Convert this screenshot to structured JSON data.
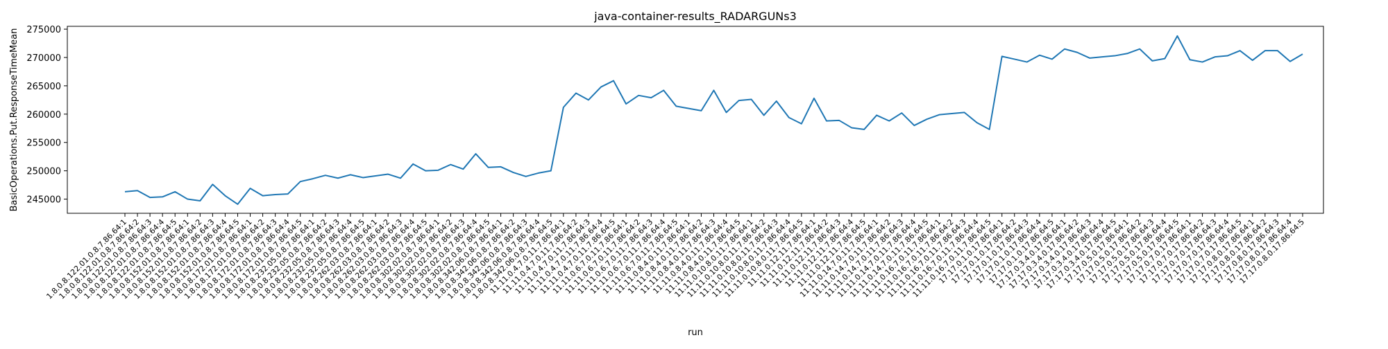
{
  "chart_data": {
    "type": "line",
    "title": "java-container-results_RADARGUNs3",
    "xlabel": "run",
    "ylabel": "BasicOperations.Put.ResponseTimeMean",
    "ylim": [
      242500,
      275500
    ],
    "yticks": [
      245000,
      250000,
      255000,
      260000,
      265000,
      270000,
      275000
    ],
    "grid": false,
    "line_color": "#1f77b4",
    "categories": [
      "1.8.0.8.122.01.0.8.7.86.64:1",
      "1.8.0.8.122.01.0.8.7.86.64:2",
      "1.8.0.8.122.01.0.8.7.86.64:3",
      "1.8.0.8.122.01.0.8.7.86.64:4",
      "1.8.0.8.122.01.0.8.7.86.64:5",
      "1.8.0.8.152.01.0.8.7.86.64:1",
      "1.8.0.8.152.01.0.8.7.86.64:2",
      "1.8.0.8.152.01.0.8.7.86.64:3",
      "1.8.0.8.152.01.0.8.7.86.64:4",
      "1.8.0.8.152.01.0.8.7.86.64:5",
      "1.8.0.8.172.01.0.8.7.86.64:1",
      "1.8.0.8.172.01.0.8.7.86.64:2",
      "1.8.0.8.172.01.0.8.7.86.64:3",
      "1.8.0.8.172.01.0.8.7.86.64:4",
      "1.8.0.8.172.01.0.8.7.86.64:5",
      "1.8.0.8.232.05.0.8.7.86.64:1",
      "1.8.0.8.232.05.0.8.7.86.64:2",
      "1.8.0.8.232.05.0.8.7.86.64:3",
      "1.8.0.8.232.05.0.8.7.86.64:4",
      "1.8.0.8.232.05.0.8.7.86.64:5",
      "1.8.0.8.262.03.0.8.7.86.64:1",
      "1.8.0.8.262.03.0.8.7.86.64:2",
      "1.8.0.8.262.03.0.8.7.86.64:3",
      "1.8.0.8.262.03.0.8.7.86.64:4",
      "1.8.0.8.262.03.0.8.7.86.64:5",
      "1.8.0.8.302.02.0.8.7.86.64:1",
      "1.8.0.8.302.02.0.8.7.86.64:2",
      "1.8.0.8.302.02.0.8.7.86.64:3",
      "1.8.0.8.302.02.0.8.7.86.64:4",
      "1.8.0.8.302.02.0.8.7.86.64:5",
      "1.8.0.8.342.06.0.8.7.86.64:1",
      "1.8.0.8.342.06.0.8.7.86.64:2",
      "1.8.0.8.342.06.0.8.7.86.64:3",
      "1.8.0.8.342.06.0.8.7.86.64:4",
      "1.8.0.8.342.06.0.8.7.86.64:5",
      "11.11.0.4.7.0.11.7.86.64:1",
      "11.11.0.4.7.0.11.7.86.64:2",
      "11.11.0.4.7.0.11.7.86.64:3",
      "11.11.0.4.7.0.11.7.86.64:4",
      "11.11.0.4.7.0.11.7.86.64:5",
      "11.11.0.6.7.0.11.7.86.64:1",
      "11.11.0.6.7.0.11.7.86.64:2",
      "11.11.0.6.7.0.11.7.86.64:3",
      "11.11.0.6.7.0.11.7.86.64:4",
      "11.11.0.6.7.0.11.7.86.64:5",
      "11.11.0.8.4.0.11.7.86.64:1",
      "11.11.0.8.4.0.11.7.86.64:2",
      "11.11.0.8.4.0.11.7.86.64:3",
      "11.11.0.8.4.0.11.7.86.64:4",
      "11.11.0.8.4.0.11.7.86.64:5",
      "11.11.0.10.8.0.11.7.86.64:1",
      "11.11.0.10.8.0.11.7.86.64:2",
      "11.11.0.10.8.0.11.7.86.64:3",
      "11.11.0.10.8.0.11.7.86.64:4",
      "11.11.0.10.8.0.11.7.86.64:5",
      "11.11.0.12.11.7.86.64:1",
      "11.11.0.12.11.7.86.64:2",
      "11.11.0.12.11.7.86.64:3",
      "11.11.0.12.11.7.86.64:4",
      "11.11.0.12.11.7.86.64:5",
      "11.11.0.14.7.0.11.7.86.64:1",
      "11.11.0.14.7.0.11.7.86.64:2",
      "11.11.0.14.7.0.11.7.86.64:3",
      "11.11.0.14.7.0.11.7.86.64:4",
      "11.11.0.14.7.0.11.7.86.64:5",
      "11.11.0.16.7.0.11.7.86.64:1",
      "11.11.0.16.7.0.11.7.86.64:2",
      "11.11.0.16.7.0.11.7.86.64:3",
      "11.11.0.16.7.0.11.7.86.64:4",
      "11.11.0.16.7.0.11.7.86.64:5",
      "17.17.0.1.0.17.86.64:1",
      "17.17.0.1.0.17.86.64:2",
      "17.17.0.1.0.17.86.64:3",
      "17.17.0.1.0.17.86.64:4",
      "17.17.0.1.0.17.86.64:5",
      "17.17.0.3.4.0.17.86.64:1",
      "17.17.0.3.4.0.17.86.64:2",
      "17.17.0.3.4.0.17.86.64:3",
      "17.17.0.3.4.0.17.86.64:4",
      "17.17.0.3.4.0.17.86.64:5",
      "17.17.0.5.0.17.86.64:1",
      "17.17.0.5.0.17.86.64:2",
      "17.17.0.5.0.17.86.64:3",
      "17.17.0.5.0.17.86.64:4",
      "17.17.0.5.0.17.86.64:5",
      "17.17.0.7.0.17.86.64:1",
      "17.17.0.7.0.17.86.64:2",
      "17.17.0.7.0.17.86.64:3",
      "17.17.0.7.0.17.86.64:4",
      "17.17.0.7.0.17.86.64:5",
      "17.17.0.8.0.17.86.64:1",
      "17.17.0.8.0.17.86.64:2",
      "17.17.0.8.0.17.86.64:3",
      "17.17.0.8.0.17.86.64:4",
      "17.17.0.8.0.17.86.64:5"
    ],
    "values": [
      246300,
      246500,
      245300,
      245400,
      246300,
      245000,
      244700,
      247600,
      245600,
      244100,
      246900,
      245600,
      245800,
      245900,
      248100,
      248600,
      249200,
      248700,
      249300,
      248800,
      249100,
      249400,
      248700,
      251200,
      250000,
      250100,
      251100,
      250300,
      253000,
      250600,
      250700,
      249700,
      249000,
      249600,
      250000,
      261200,
      263700,
      262500,
      264800,
      265900,
      261800,
      263300,
      262900,
      264200,
      261400,
      261000,
      260600,
      264200,
      260300,
      262400,
      262600,
      259800,
      262300,
      259400,
      258300,
      262800,
      258800,
      258900,
      257600,
      257300,
      259800,
      258800,
      260200,
      258000,
      259100,
      259900,
      260100,
      260300,
      258500,
      257300,
      270200,
      269700,
      269200,
      270400,
      269700,
      271500,
      270900,
      269900,
      270100,
      270300,
      270700,
      271500,
      269400,
      269800,
      273800,
      269600,
      269200,
      270100,
      270300,
      271200,
      269500,
      271200,
      271200,
      269300,
      270600
    ]
  }
}
